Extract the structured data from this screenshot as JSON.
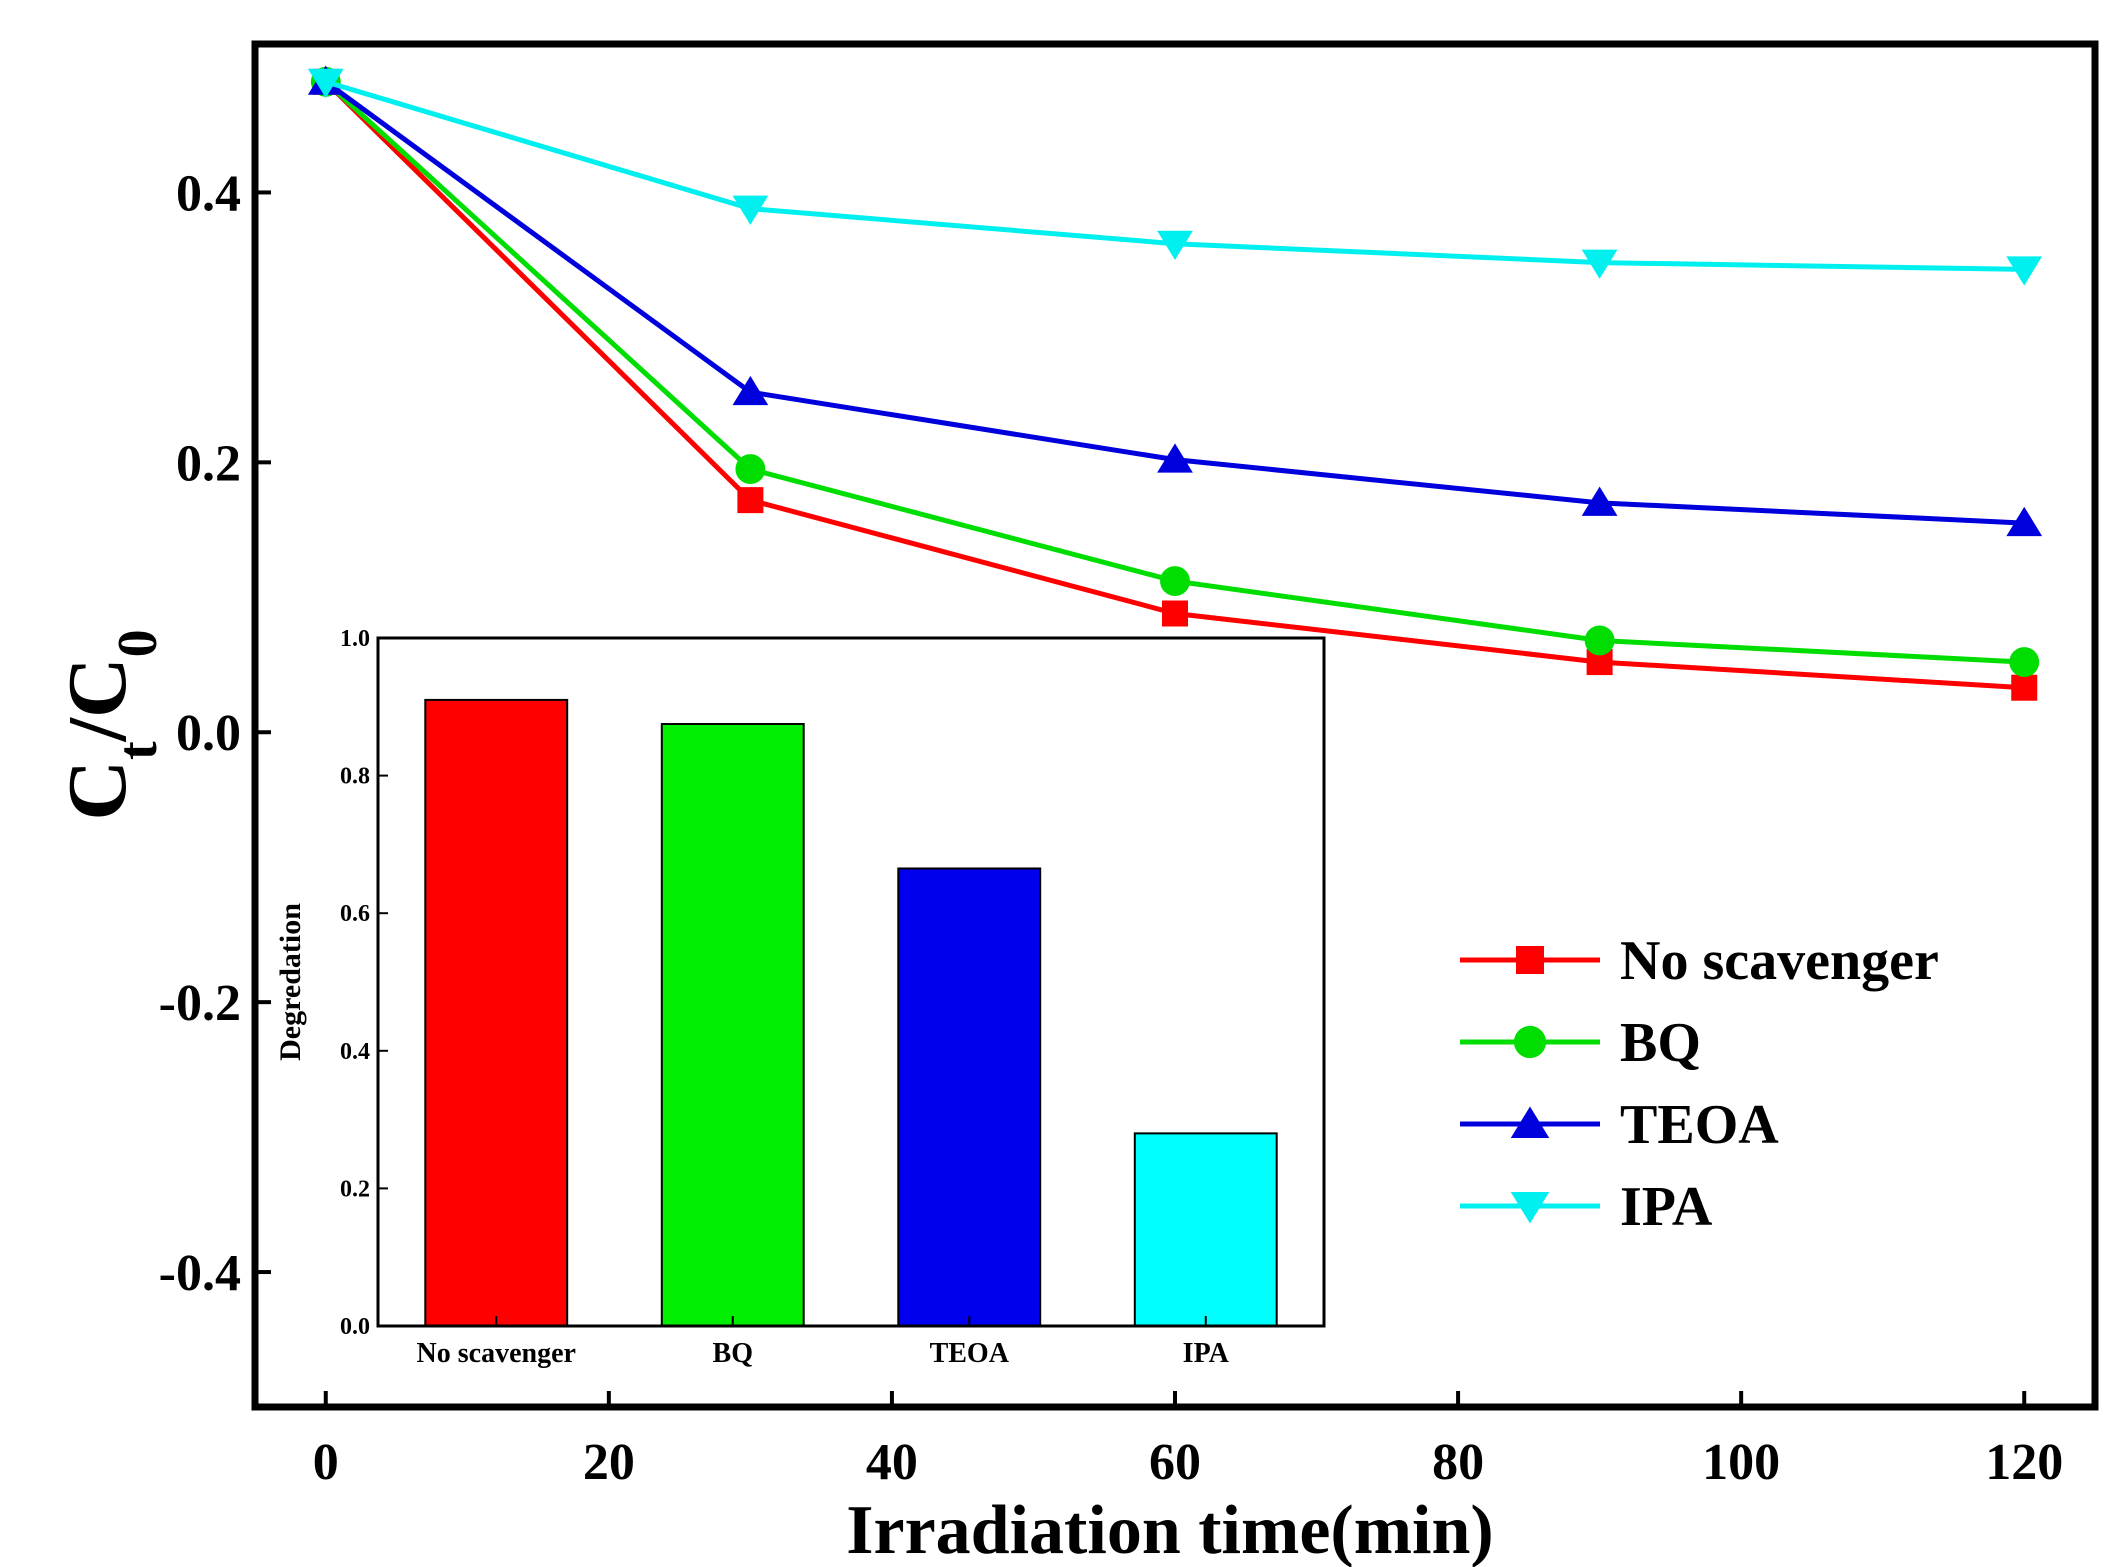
{
  "chart_data": [
    {
      "type": "line",
      "title": "",
      "xlabel": "Irradiation time(min)",
      "ylabel_main": "C",
      "ylabel_sub1": "t",
      "ylabel_slash": "/",
      "ylabel_sub2": "0",
      "x": [
        0,
        30,
        60,
        90,
        120
      ],
      "xlim": [
        -5,
        125
      ],
      "ylim": [
        -0.5,
        0.51
      ],
      "xticks": [
        "0",
        "20",
        "40",
        "60",
        "80",
        "100",
        "120"
      ],
      "xtick_values": [
        0,
        20,
        40,
        60,
        80,
        100,
        120
      ],
      "yticks": [
        "0.4",
        "0.2",
        "0.0",
        "-0.2",
        "-0.4"
      ],
      "ytick_values": [
        0.4,
        0.2,
        0.0,
        -0.2,
        -0.4
      ],
      "series": [
        {
          "name": "No scavenger",
          "color": "#ff0000",
          "marker": "square",
          "values": [
            0.482,
            0.172,
            0.088,
            0.052,
            0.033
          ]
        },
        {
          "name": "BQ",
          "color": "#00dd00",
          "marker": "circle",
          "values": [
            0.482,
            0.195,
            0.112,
            0.068,
            0.052
          ]
        },
        {
          "name": "TEOA",
          "color": "#0000dd",
          "marker": "triangle-up",
          "values": [
            0.482,
            0.252,
            0.202,
            0.17,
            0.155
          ]
        },
        {
          "name": "IPA",
          "color": "#00f0f0",
          "marker": "triangle-down",
          "values": [
            0.482,
            0.388,
            0.362,
            0.348,
            0.343
          ]
        }
      ],
      "legend": "right"
    },
    {
      "type": "bar",
      "title": "",
      "ylabel": "Degredation",
      "categories": [
        "No scavenger",
        "BQ",
        "TEOA",
        "IPA"
      ],
      "values": [
        0.91,
        0.875,
        0.665,
        0.28
      ],
      "colors": [
        "#ff0000",
        "#00ee00",
        "#0000ee",
        "#00ffff"
      ],
      "ylim": [
        0.0,
        1.0
      ],
      "yticks": [
        "0.0",
        "0.2",
        "0.4",
        "0.6",
        "0.8",
        "1.0"
      ],
      "ytick_values": [
        0.0,
        0.2,
        0.4,
        0.6,
        0.8,
        1.0
      ]
    }
  ]
}
